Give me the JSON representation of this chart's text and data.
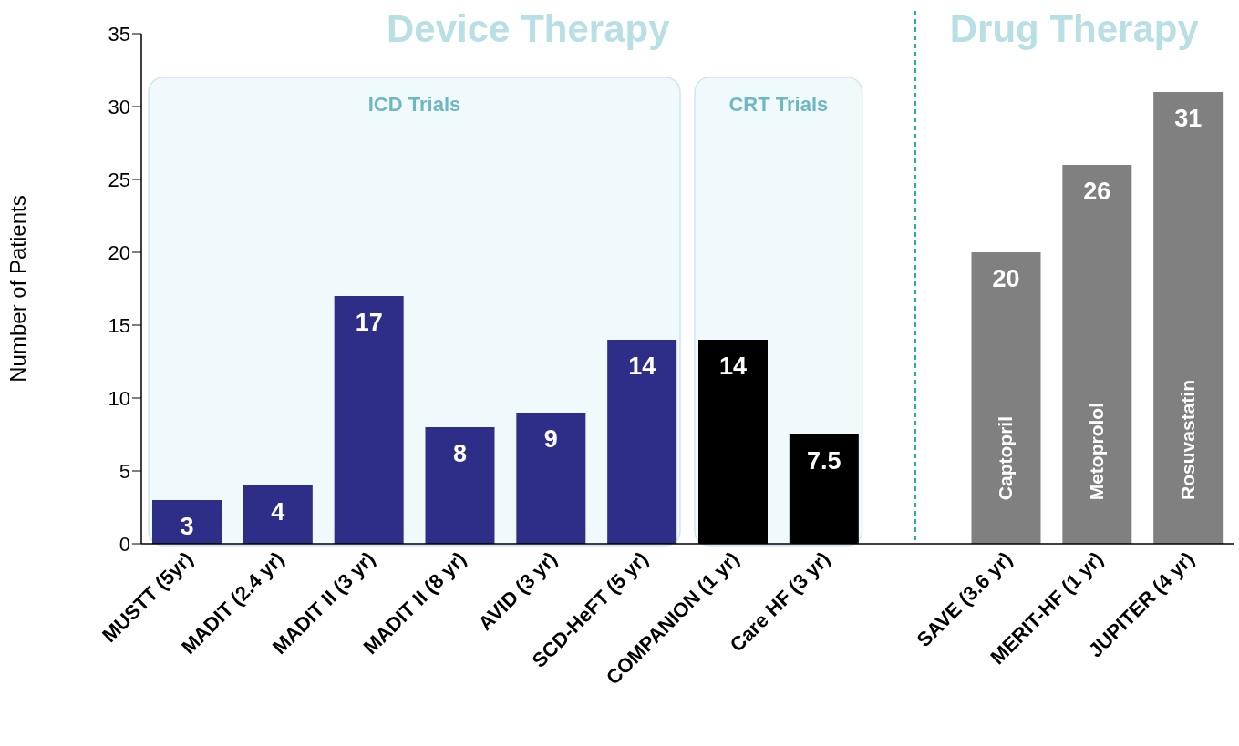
{
  "chart_data": {
    "type": "bar",
    "ylabel": "Number of Patients",
    "categories": [
      "MUSTT (5yr)",
      "MADIT (2.4 yr)",
      "MADIT II (3 yr)",
      "MADIT II (8 yr)",
      "AVID (3 yr)",
      "SCD-HeFT (5 yr)",
      "COMPANION (1 yr)",
      "Care HF (3 yr)",
      "SAVE (3.6 yr)",
      "MERIT-HF (1 yr)",
      "JUPITER (4 yr)"
    ],
    "values": [
      3,
      4,
      17,
      8,
      9,
      14,
      14,
      7.5,
      20,
      26,
      31
    ],
    "colors": [
      "#2e2e88",
      "#2e2e88",
      "#2e2e88",
      "#2e2e88",
      "#2e2e88",
      "#2e2e88",
      "#000000",
      "#000000",
      "#808080",
      "#808080",
      "#808080"
    ],
    "ylim": [
      0,
      35
    ],
    "yticks": [
      0,
      5,
      10,
      15,
      20,
      25,
      30,
      35
    ],
    "grid": false,
    "data_labels": true,
    "bands": [
      {
        "axis": "x",
        "from": "MUSTT (5yr)",
        "to": "SCD-HeFT (5 yr)",
        "label": "ICD Trials",
        "color": "#f0fafc"
      },
      {
        "axis": "x",
        "from": "COMPANION (1 yr)",
        "to": "Care HF (3 yr)",
        "label": "CRT Trials",
        "color": "#f0fafc"
      }
    ],
    "annotations": [
      "Device Therapy",
      "Drug Therapy",
      "Captopril",
      "Metoprolol",
      "Rosuvastatin"
    ]
  }
}
